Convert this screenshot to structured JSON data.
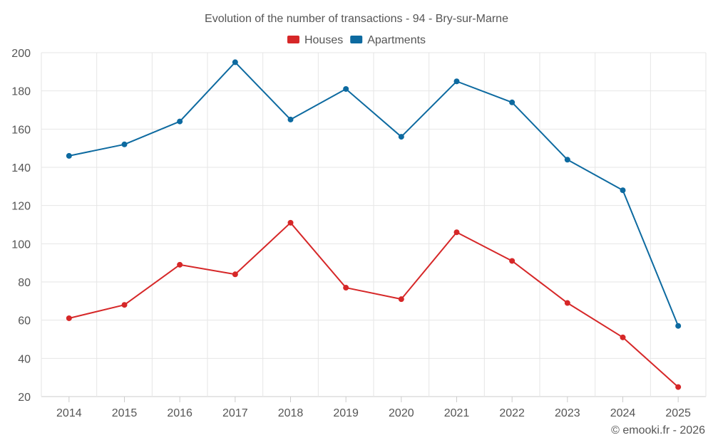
{
  "chart_data": {
    "type": "line",
    "title": "Evolution of the number of transactions - 94 - Bry-sur-Marne",
    "categories": [
      "2014",
      "2015",
      "2016",
      "2017",
      "2018",
      "2019",
      "2020",
      "2021",
      "2022",
      "2023",
      "2024",
      "2025"
    ],
    "series": [
      {
        "name": "Houses",
        "color": "#d62728",
        "values": [
          61,
          68,
          89,
          84,
          111,
          77,
          71,
          106,
          91,
          69,
          51,
          25
        ]
      },
      {
        "name": "Apartments",
        "color": "#0d6aa0",
        "values": [
          146,
          152,
          164,
          195,
          165,
          181,
          156,
          185,
          174,
          144,
          128,
          57
        ]
      }
    ],
    "ylim": [
      20,
      200
    ],
    "yticks": [
      20,
      40,
      60,
      80,
      100,
      120,
      140,
      160,
      180,
      200
    ],
    "xlabel": "",
    "ylabel": "",
    "grid": true,
    "legend_position": "top-center"
  },
  "credit": "© emooki.fr - 2026"
}
